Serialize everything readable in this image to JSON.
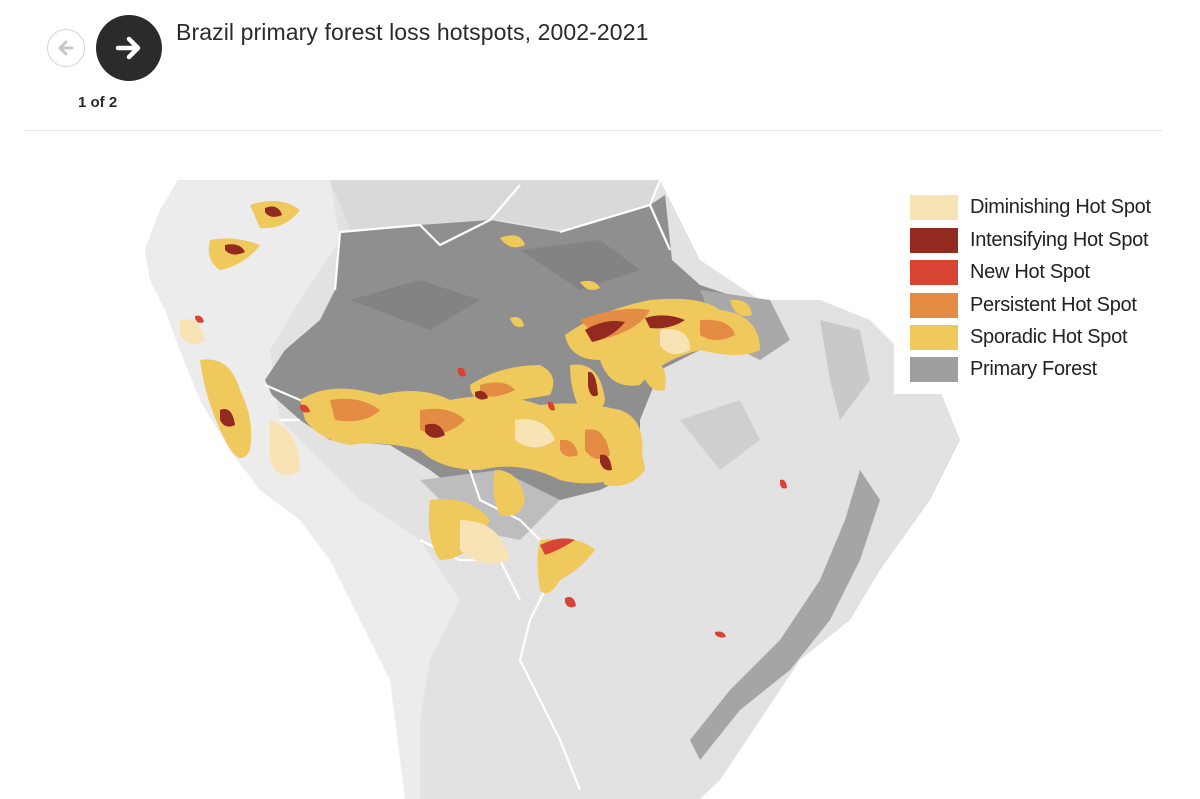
{
  "nav": {
    "prev_icon": "arrow-left-icon",
    "next_icon": "arrow-right-icon",
    "counter": "1 of 2"
  },
  "title": "Brazil primary forest loss hotspots, 2002-2021",
  "legend": {
    "items": [
      {
        "label": "Diminishing Hot Spot",
        "color": "#f8e3b4"
      },
      {
        "label": "Intensifying Hot Spot",
        "color": "#932a1f"
      },
      {
        "label": "New Hot Spot",
        "color": "#d84434"
      },
      {
        "label": "Persistent Hot Spot",
        "color": "#e48c43"
      },
      {
        "label": "Sporadic Hot Spot",
        "color": "#f0c95c"
      },
      {
        "label": "Primary Forest",
        "color": "#9e9e9e"
      }
    ]
  },
  "map_colors": {
    "land": "#e2e2e2",
    "land_light": "#efefef",
    "forest": "#8f8f8f",
    "forest_light": "#b8b8b8",
    "borders": "#ffffff"
  }
}
